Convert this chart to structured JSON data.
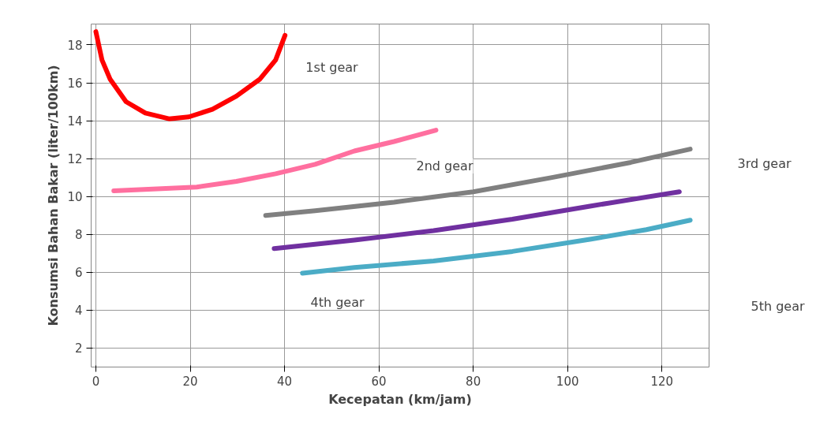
{
  "chart_data": {
    "type": "line",
    "xlabel": "Kecepatan (km/jam)",
    "ylabel": "Konsumsi Bahan Bakar (liter/100km)",
    "xlim": [
      -1,
      130
    ],
    "ylim": [
      1,
      19.1
    ],
    "xticks": [
      0,
      20,
      40,
      60,
      80,
      100,
      120
    ],
    "yticks": [
      2,
      4,
      6,
      8,
      10,
      12,
      14,
      16,
      18
    ],
    "grid": true,
    "marker": "none",
    "line_style": "solid",
    "series": [
      {
        "color": "#ff0000",
        "x": [
          0,
          1.3,
          3,
          6.4,
          10.5,
          15.5,
          19.7,
          24.7,
          29.8,
          34.8,
          38.1,
          40.1
        ],
        "values": [
          18.7,
          17.2,
          16.2,
          15,
          14.4,
          14.1,
          14.2,
          14.6,
          15.3,
          16.2,
          17.2,
          18.5
        ]
      },
      {
        "color": "#ff6f9f",
        "x": [
          3.8,
          13,
          21.4,
          29.8,
          38.1,
          46.5,
          54.8,
          63.2,
          72.1
        ],
        "values": [
          10.3,
          10.4,
          10.5,
          10.8,
          11.2,
          11.7,
          12.4,
          12.9,
          13.5
        ]
      },
      {
        "color": "#808080",
        "x": [
          36,
          46.5,
          63.2,
          80,
          96.7,
          113.4,
          126
        ],
        "values": [
          9.0,
          9.25,
          9.7,
          10.25,
          11,
          11.8,
          12.5
        ]
      },
      {
        "color": "#7030a0",
        "x": [
          37.8,
          54.8,
          71.6,
          88.3,
          105,
          123.7
        ],
        "values": [
          7.25,
          7.7,
          8.2,
          8.8,
          9.5,
          10.25
        ]
      },
      {
        "color": "#4bacc6",
        "x": [
          43.8,
          54.8,
          71.6,
          88.3,
          105,
          116.7,
          126
        ],
        "values": [
          5.95,
          6.25,
          6.6,
          7.1,
          7.75,
          8.25,
          8.75
        ]
      }
    ],
    "annotations": [
      "1st gear",
      "2nd gear",
      "3rd gear",
      "4th gear",
      "5th gear"
    ]
  }
}
